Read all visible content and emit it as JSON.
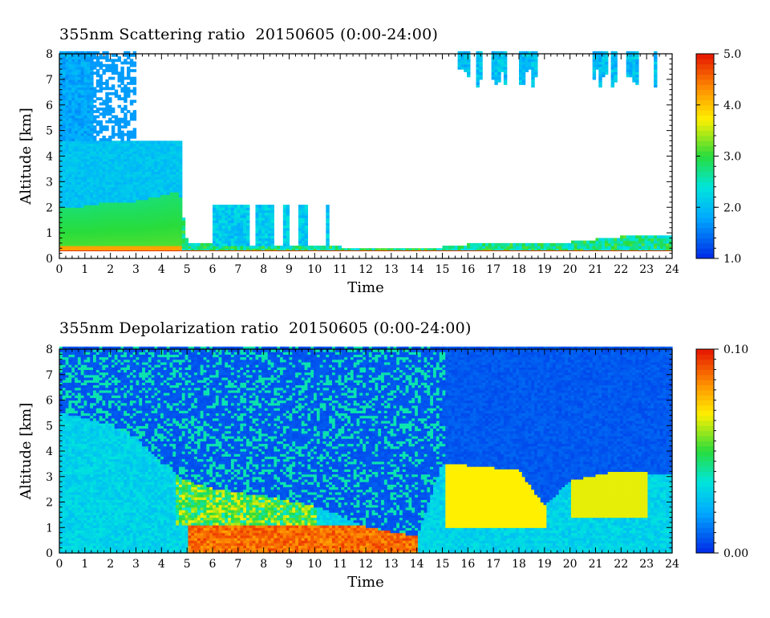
{
  "chart_data": [
    {
      "type": "heatmap",
      "title": "355nm Scattering ratio  20150605 (0:00-24:00)",
      "xlabel": "Time",
      "ylabel": "Altitude [km]",
      "xlim": [
        0,
        24
      ],
      "ylim": [
        0,
        8
      ],
      "x_ticks": [
        "0",
        "1",
        "2",
        "3",
        "4",
        "5",
        "6",
        "7",
        "8",
        "9",
        "10",
        "11",
        "12",
        "13",
        "14",
        "15",
        "16",
        "17",
        "18",
        "19",
        "20",
        "21",
        "22",
        "23",
        "24"
      ],
      "y_ticks": [
        "0",
        "1",
        "2",
        "3",
        "4",
        "5",
        "6",
        "7",
        "8"
      ],
      "colorbar": {
        "min": 1.0,
        "max": 5.0,
        "tick_labels": [
          "1.0",
          "2.0",
          "3.0",
          "4.0",
          "5.0"
        ],
        "colormap": "blue-cyan-green-yellow-red",
        "saturated_color": "#ffffff"
      },
      "features": {
        "boundary_layer_top_km": [
          [
            0,
            2.0
          ],
          [
            1,
            2.0
          ],
          [
            2,
            2.2
          ],
          [
            3,
            2.2
          ],
          [
            4,
            2.4
          ],
          [
            4.7,
            2.6
          ],
          [
            5,
            0.6
          ],
          [
            6,
            0.5
          ],
          [
            8,
            0.4
          ],
          [
            10,
            0.45
          ],
          [
            12,
            0.35
          ],
          [
            14,
            0.3
          ],
          [
            16,
            0.5
          ],
          [
            17,
            0.6
          ],
          [
            18,
            0.5
          ],
          [
            20,
            0.6
          ],
          [
            22,
            0.8
          ],
          [
            24,
            0.9
          ]
        ],
        "high_cloud_intervals_h": [
          [
            15.5,
            16.0
          ],
          [
            16.2,
            16.5
          ],
          [
            16.9,
            17.5
          ],
          [
            17.9,
            18.7
          ],
          [
            20.8,
            21.4
          ],
          [
            21.6,
            21.8
          ],
          [
            22.1,
            22.6
          ],
          [
            23.2,
            23.4
          ]
        ]
      }
    },
    {
      "type": "heatmap",
      "title": "355nm Depolarization ratio  20150605 (0:00-24:00)",
      "xlabel": "Time",
      "ylabel": "Altitude [km]",
      "xlim": [
        0,
        24
      ],
      "ylim": [
        0,
        8
      ],
      "x_ticks": [
        "0",
        "1",
        "2",
        "3",
        "4",
        "5",
        "6",
        "7",
        "8",
        "9",
        "10",
        "11",
        "12",
        "13",
        "14",
        "15",
        "16",
        "17",
        "18",
        "19",
        "20",
        "21",
        "22",
        "23",
        "24"
      ],
      "y_ticks": [
        "0",
        "1",
        "2",
        "3",
        "4",
        "5",
        "6",
        "7",
        "8"
      ],
      "colorbar": {
        "min": 0.0,
        "max": 0.1,
        "tick_labels": [
          "0.00",
          "0.10"
        ],
        "colormap": "blue-cyan-green-yellow-red",
        "saturated_color": "#ffffff"
      },
      "features": {
        "dust_layer_top_km": [
          [
            0,
            5.5
          ],
          [
            2,
            5.0
          ],
          [
            3,
            4.5
          ],
          [
            4,
            3.5
          ],
          [
            5,
            2.8
          ],
          [
            6,
            2.5
          ],
          [
            8,
            2.2
          ],
          [
            10,
            1.8
          ],
          [
            12,
            1.0
          ],
          [
            14,
            0.6
          ],
          [
            15,
            3.5
          ],
          [
            17,
            3.3
          ],
          [
            18,
            3.2
          ],
          [
            19,
            1.8
          ],
          [
            20,
            2.8
          ],
          [
            22,
            3.2
          ],
          [
            24,
            3.0
          ]
        ]
      }
    }
  ]
}
